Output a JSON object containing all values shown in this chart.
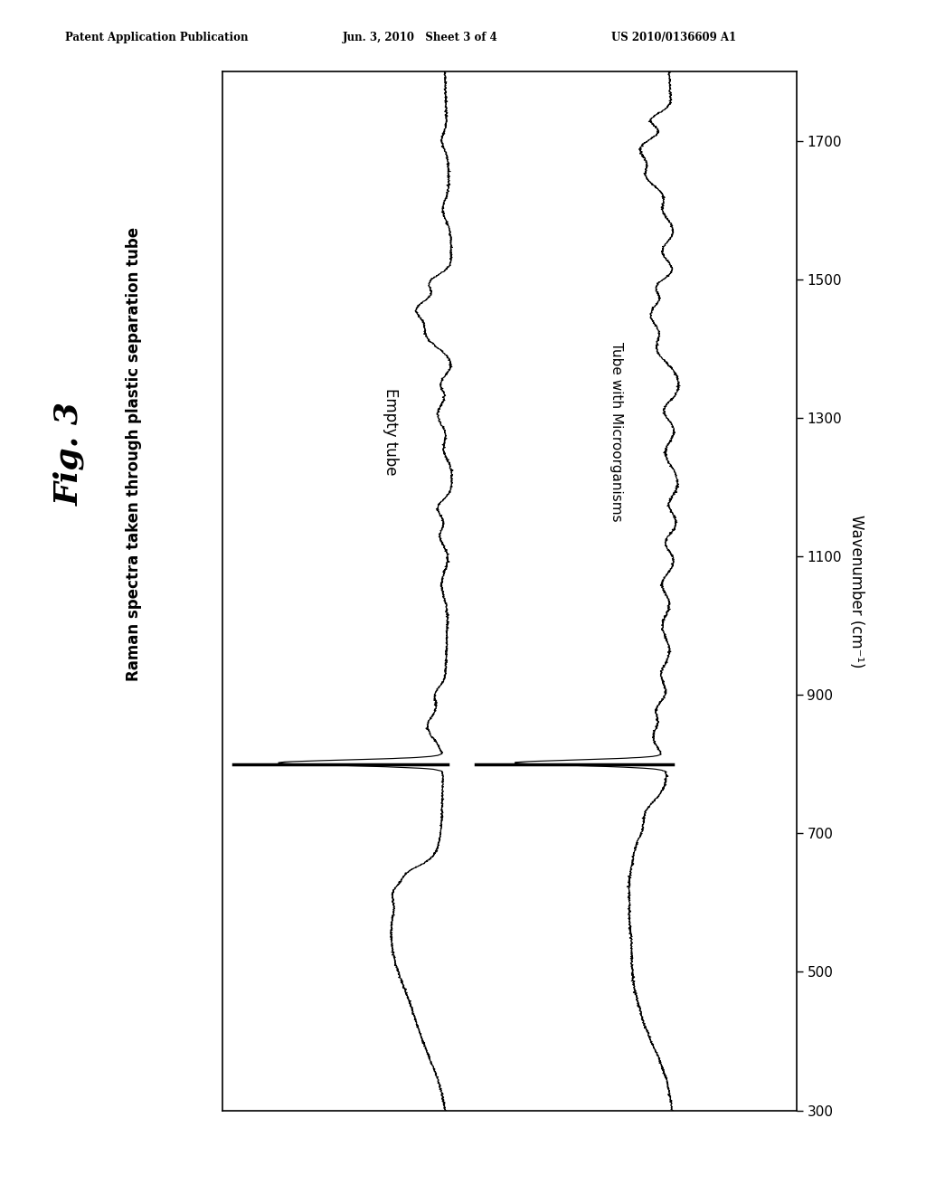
{
  "fig_label": "Fig. 3",
  "title": "Raman spectra taken through plastic separation tube",
  "ylabel": "Wavenumber (cm⁻¹)",
  "y_min": 300,
  "y_max": 1800,
  "label1": "Empty tube",
  "label2": "Tube with Microorganisms",
  "header_left": "Patent Application Publication",
  "header_center": "Jun. 3, 2010   Sheet 3 of 4",
  "header_right": "US 2010/0136609 A1",
  "background_color": "#ffffff",
  "line_color": "#000000",
  "tick_labels": [
    300,
    500,
    700,
    900,
    1100,
    1300,
    1500,
    1700
  ]
}
